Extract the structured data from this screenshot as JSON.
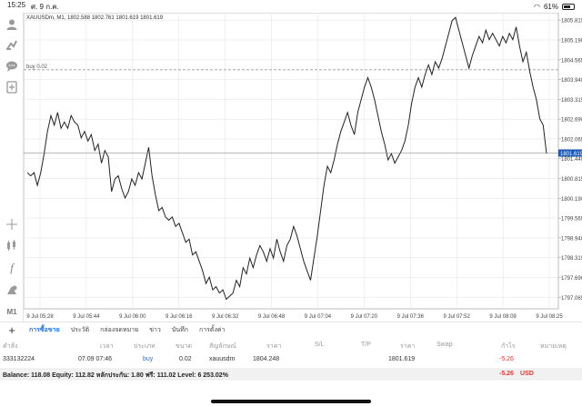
{
  "status_bar": {
    "time": "15:25",
    "date": "ศ. 9 ก.ค.",
    "battery": "61%",
    "wifi_icon": "wifi-icon",
    "battery_icon": "battery-icon"
  },
  "toolbar": {
    "icons": [
      "person-icon",
      "indicators-icon",
      "chat-icon",
      "add-chart-icon",
      "crosshair-icon",
      "candles-icon",
      "function-icon",
      "objects-icon"
    ],
    "timeframe": "M1"
  },
  "chart": {
    "header": "XAUUSDm, M1, 1802.588 1802.761 1801.619 1801.619",
    "order_line_label": "buy 0.02",
    "current_price_label": "1801.619",
    "colors": {
      "price_line": "#222222",
      "current_price_bg": "#1e5ab4",
      "grid": "#e6e6e6",
      "order_line": "#9a9a9a"
    }
  },
  "chart_data": {
    "type": "line",
    "symbol": "XAUUSDm",
    "timeframe": "M1",
    "y_tick_labels": [
      "1805.815",
      "1805.190",
      "1804.565",
      "1803.940",
      "1803.315",
      "1802.690",
      "1802.065",
      "1801.440",
      "1800.815",
      "1800.190",
      "1799.565",
      "1798.940",
      "1798.315",
      "1797.690",
      "1797.065"
    ],
    "x_tick_labels": [
      "9 Jul 05:28",
      "9 Jul 05:44",
      "9 Jul 06:00",
      "9 Jul 06:16",
      "9 Jul 06:32",
      "9 Jul 06:48",
      "9 Jul 07:04",
      "9 Jul 07:20",
      "9 Jul 07:36",
      "9 Jul 07:52",
      "9 Jul 08:09",
      "9 Jul 08:25"
    ],
    "ylim": [
      1796.7,
      1806.05
    ],
    "grid": true,
    "order_line_price": 1804.248,
    "current_price": 1801.619,
    "values": [
      1801.0,
      1800.9,
      1801.0,
      1800.6,
      1801.0,
      1801.6,
      1802.3,
      1802.8,
      1802.5,
      1802.9,
      1802.4,
      1802.6,
      1802.4,
      1802.8,
      1802.6,
      1802.5,
      1802.1,
      1802.3,
      1802.0,
      1802.2,
      1801.7,
      1801.9,
      1801.3,
      1801.7,
      1801.5,
      1800.4,
      1800.8,
      1800.9,
      1800.5,
      1800.2,
      1800.4,
      1800.8,
      1800.6,
      1801.0,
      1800.8,
      1801.3,
      1801.8,
      1800.9,
      1800.3,
      1799.8,
      1799.9,
      1799.6,
      1799.5,
      1799.6,
      1799.3,
      1799.4,
      1799.1,
      1798.8,
      1798.9,
      1798.4,
      1798.5,
      1798.2,
      1797.9,
      1797.5,
      1797.7,
      1797.3,
      1797.4,
      1797.2,
      1797.3,
      1797.0,
      1797.1,
      1797.2,
      1797.6,
      1797.4,
      1798.0,
      1797.8,
      1798.3,
      1798.0,
      1798.4,
      1798.7,
      1798.5,
      1798.2,
      1798.6,
      1798.3,
      1798.9,
      1798.5,
      1798.2,
      1798.7,
      1798.9,
      1799.3,
      1799.0,
      1798.6,
      1798.2,
      1797.9,
      1797.6,
      1798.3,
      1799.0,
      1799.8,
      1800.6,
      1801.2,
      1801.0,
      1801.4,
      1801.9,
      1802.3,
      1802.6,
      1802.9,
      1802.5,
      1802.2,
      1802.9,
      1803.3,
      1803.7,
      1804.0,
      1803.7,
      1803.3,
      1802.8,
      1802.3,
      1801.9,
      1801.4,
      1801.6,
      1801.3,
      1801.5,
      1801.7,
      1802.0,
      1802.5,
      1803.2,
      1803.7,
      1804.0,
      1803.7,
      1804.1,
      1804.4,
      1804.1,
      1804.5,
      1804.3,
      1804.6,
      1805.0,
      1805.4,
      1805.8,
      1805.9,
      1805.5,
      1805.1,
      1804.7,
      1804.3,
      1804.7,
      1805.0,
      1805.3,
      1805.1,
      1805.5,
      1805.2,
      1805.4,
      1805.2,
      1805.0,
      1805.3,
      1805.1,
      1805.4,
      1805.2,
      1805.6,
      1805.0,
      1804.5,
      1804.8,
      1804.2,
      1803.7,
      1803.3,
      1802.7,
      1802.5,
      1801.6
    ]
  },
  "tabs": {
    "add_label": "+",
    "items": [
      "การซื้อขาย",
      "ประวัติ",
      "กล่องจดหมาย",
      "ข่าว",
      "บันทึก",
      "การตั้งค่า"
    ]
  },
  "trade_table": {
    "headers": [
      "คำสั่ง",
      "เวลา",
      "ประเภท",
      "ขนาด",
      "สัญลักษณ์",
      "ราคา",
      "S/L",
      "T/P",
      "ราคา",
      "Swap",
      "กำไร",
      "หมายเหตุ"
    ],
    "row": {
      "ticket": "333132224",
      "time": "07.09 07:46",
      "type": "buy",
      "volume": "0.02",
      "symbol": "xauusdm",
      "open_price": "1804.248",
      "sl": "",
      "tp": "",
      "current_price": "1801.619",
      "swap": "",
      "profit": "-5.26",
      "comment": ""
    },
    "balance_line": "Balance: 118.08 Equity: 112.82 หลักประกัน: 1.80 ฟรี: 111.02 Level: 6 253.02%",
    "total_profit": "-5.26",
    "currency": "USD",
    "profit_color": "#e53935",
    "buy_color": "#1a73e8"
  }
}
